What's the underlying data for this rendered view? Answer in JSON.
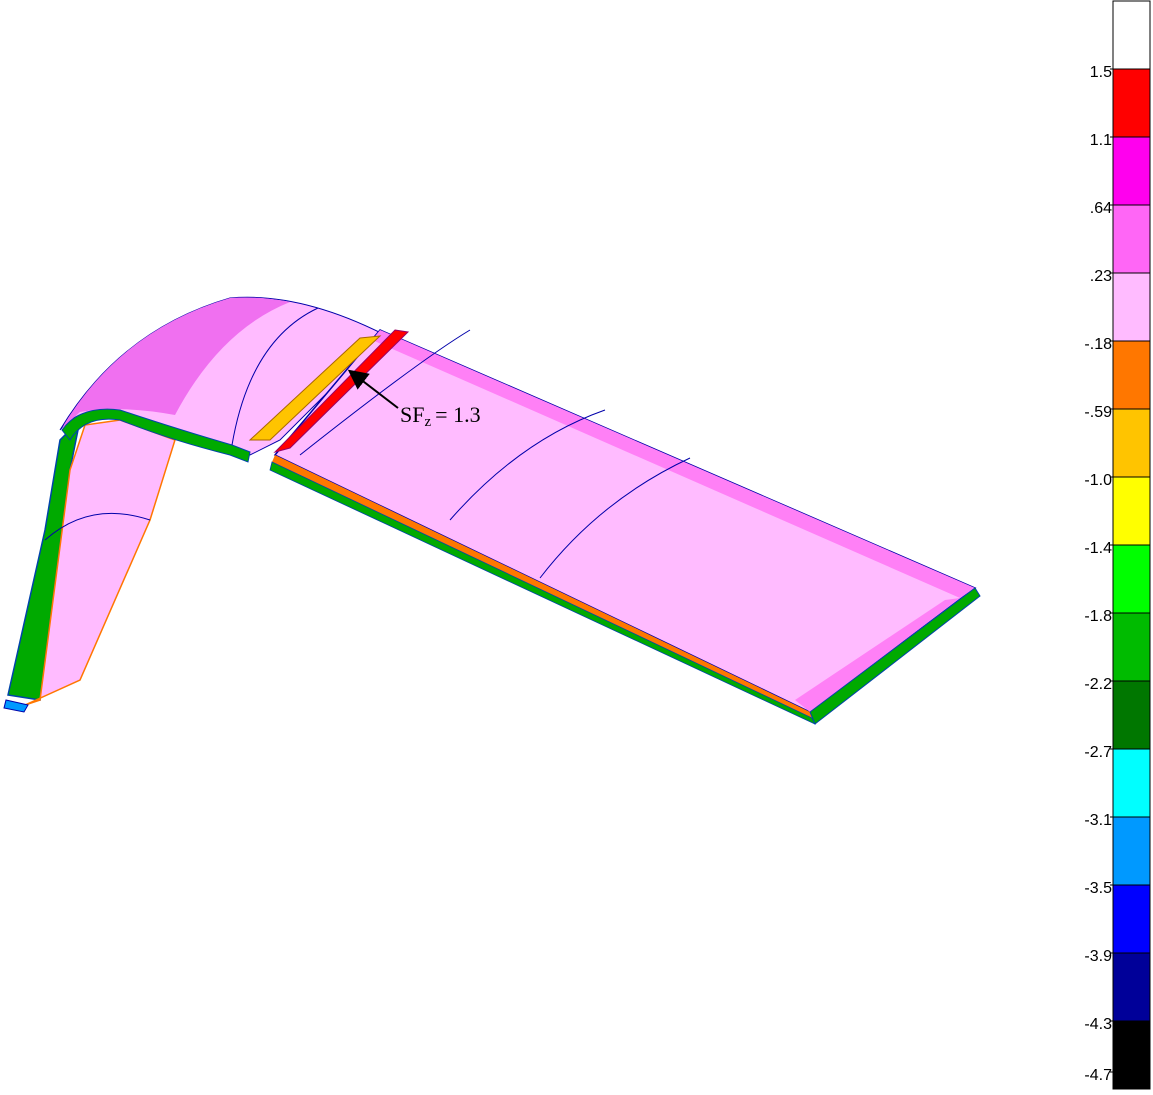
{
  "annotation": {
    "main": "SF",
    "subscript": "z",
    "rest": "= 1.3"
  },
  "colorbar": {
    "colors": [
      "#ffffff",
      "#ff0000",
      "#ff00ee",
      "#ff66f6",
      "#ffbbff",
      "#ff7700",
      "#ffc400",
      "#ffff00",
      "#00ff00",
      "#00bb00",
      "#007700",
      "#00ffff",
      "#0099ff",
      "#0000ff",
      "#000099",
      "#000000"
    ],
    "labels": [
      "1.5",
      "1.1",
      ".64",
      ".23",
      "-.18",
      "-.59",
      "-1.0",
      "-1.4",
      "-1.8",
      "-2.2",
      "-2.7",
      "-3.1",
      "-3.5",
      "-3.9",
      "-4.3",
      "-4.7"
    ]
  }
}
